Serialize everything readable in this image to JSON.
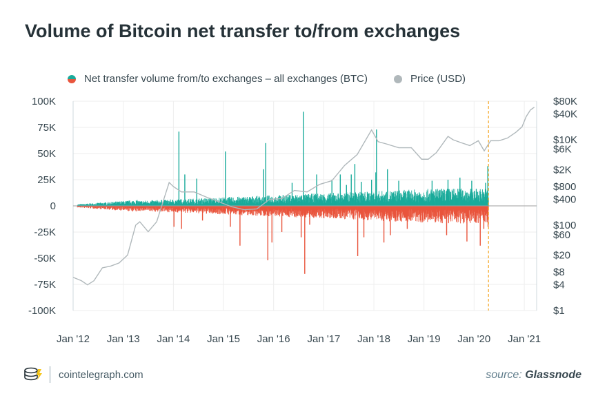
{
  "title": "Volume of Bitcoin net transfer to/from exchanges",
  "footer": {
    "site": "cointelegraph.com",
    "source_prefix": "source:",
    "source_name": "Glassnode"
  },
  "colors": {
    "positive": "#1aab9b",
    "negative": "#e9553d",
    "price": "#b0b8bb",
    "marker": "#f5a623",
    "grid": "#eeeeee"
  },
  "icons": {
    "brand": "cointelegraph-logo-icon"
  },
  "chart_data": {
    "type": "bar",
    "legend": [
      "Net transfer volume from/to exchanges – all exchanges (BTC)",
      "Price (USD)"
    ],
    "legend_placement": "top",
    "x_tick_labels": [
      "Jan '12",
      "Jan '13",
      "Jan '14",
      "Jan '15",
      "Jan '16",
      "Jan '17",
      "Jan '18",
      "Jan '19",
      "Jan '20",
      "Jan '21"
    ],
    "x_range": [
      "2012-01-01",
      "2021-04-01"
    ],
    "marker_date": "2020-04-15",
    "y_left": {
      "range": [
        -100000,
        100000
      ],
      "ticks": [
        100000,
        75000,
        50000,
        25000,
        0,
        -25000,
        -50000,
        -75000,
        -100000
      ],
      "tick_labels": [
        "100K",
        "75K",
        "50K",
        "25K",
        "0",
        "-25K",
        "-50K",
        "-75K",
        "-100K"
      ]
    },
    "y_right": {
      "scale": "log",
      "range": [
        1,
        80000
      ],
      "ticks": [
        80000,
        40000,
        10000,
        6000,
        2000,
        800,
        400,
        100,
        60,
        20,
        8,
        4,
        1
      ],
      "tick_labels": [
        "$80K",
        "$40K",
        "$10K",
        "$6K",
        "$2K",
        "$800",
        "$400",
        "$100",
        "$60",
        "$20",
        "$8",
        "$4",
        "$1"
      ]
    },
    "grid": true,
    "series": [
      {
        "name": "Net transfer volume from/to exchanges – all exchanges (BTC)",
        "kind": "bar",
        "spikes": [
          [
            "2014-02-10",
            71000
          ],
          [
            "2014-03-25",
            30000
          ],
          [
            "2014-06-20",
            26000
          ],
          [
            "2014-01-05",
            -20000
          ],
          [
            "2014-03-01",
            -22000
          ],
          [
            "2014-08-01",
            -14000
          ],
          [
            "2015-01-15",
            52000
          ],
          [
            "2015-02-20",
            -20000
          ],
          [
            "2015-05-01",
            -38000
          ],
          [
            "2015-11-05",
            60000
          ],
          [
            "2015-11-20",
            -52000
          ],
          [
            "2015-10-20",
            35000
          ],
          [
            "2015-12-20",
            -35000
          ],
          [
            "2016-03-01",
            -25000
          ],
          [
            "2016-05-15",
            22000
          ],
          [
            "2016-07-20",
            -30000
          ],
          [
            "2016-08-05",
            90000
          ],
          [
            "2016-08-15",
            -65000
          ],
          [
            "2016-11-10",
            30000
          ],
          [
            "2016-09-20",
            -18000
          ],
          [
            "2017-03-01",
            25000
          ],
          [
            "2017-05-01",
            30000
          ],
          [
            "2017-06-15",
            20000
          ],
          [
            "2017-07-20",
            30000
          ],
          [
            "2017-08-15",
            40000
          ],
          [
            "2017-09-05",
            -48000
          ],
          [
            "2017-10-01",
            23000
          ],
          [
            "2017-10-20",
            -30000
          ],
          [
            "2017-12-15",
            25000
          ],
          [
            "2018-01-15",
            32000
          ],
          [
            "2018-01-20",
            73000
          ],
          [
            "2018-03-15",
            -35000
          ],
          [
            "2018-04-10",
            35000
          ],
          [
            "2018-05-01",
            -28000
          ],
          [
            "2018-07-01",
            24000
          ],
          [
            "2018-09-01",
            -22000
          ],
          [
            "2019-03-01",
            24000
          ],
          [
            "2019-06-15",
            -28000
          ],
          [
            "2019-06-25",
            25000
          ],
          [
            "2019-09-20",
            27000
          ],
          [
            "2019-11-10",
            -34000
          ],
          [
            "2019-12-15",
            24000
          ],
          [
            "2020-02-15",
            -38000
          ],
          [
            "2020-03-12",
            -22000
          ],
          [
            "2020-03-25",
            22000
          ],
          [
            "2020-04-10",
            38000
          ],
          [
            "2020-04-12",
            -20000
          ]
        ]
      },
      {
        "name": "Price (USD)",
        "kind": "line",
        "x": [
          "2012-01-01",
          "2012-03-01",
          "2012-04-15",
          "2012-06-01",
          "2012-08-01",
          "2012-10-01",
          "2012-12-01",
          "2013-02-01",
          "2013-04-01",
          "2013-05-01",
          "2013-07-01",
          "2013-09-01",
          "2013-11-01",
          "2013-12-01",
          "2014-01-01",
          "2014-03-01",
          "2014-06-01",
          "2014-09-01",
          "2014-12-01",
          "2015-03-01",
          "2015-06-01",
          "2015-09-01",
          "2015-12-01",
          "2016-03-01",
          "2016-06-01",
          "2016-09-01",
          "2016-12-01",
          "2017-03-01",
          "2017-06-01",
          "2017-09-01",
          "2017-12-15",
          "2018-02-01",
          "2018-04-01",
          "2018-07-01",
          "2018-10-01",
          "2018-12-15",
          "2019-02-01",
          "2019-04-01",
          "2019-06-25",
          "2019-08-01",
          "2019-10-01",
          "2019-12-01",
          "2020-02-01",
          "2020-03-15",
          "2020-05-01",
          "2020-07-01",
          "2020-09-01",
          "2020-11-01",
          "2020-12-15",
          "2021-01-15",
          "2021-02-15",
          "2021-03-15"
        ],
        "values": [
          6,
          5,
          4,
          5,
          10,
          11,
          13,
          20,
          100,
          120,
          70,
          120,
          500,
          1000,
          800,
          600,
          600,
          450,
          350,
          270,
          230,
          240,
          400,
          420,
          650,
          600,
          900,
          1100,
          2500,
          4500,
          17000,
          9000,
          8000,
          6500,
          6500,
          3500,
          3500,
          5000,
          12000,
          10000,
          8500,
          7300,
          9500,
          5500,
          9500,
          9500,
          11000,
          15000,
          20000,
          35000,
          50000,
          58000
        ]
      }
    ]
  }
}
